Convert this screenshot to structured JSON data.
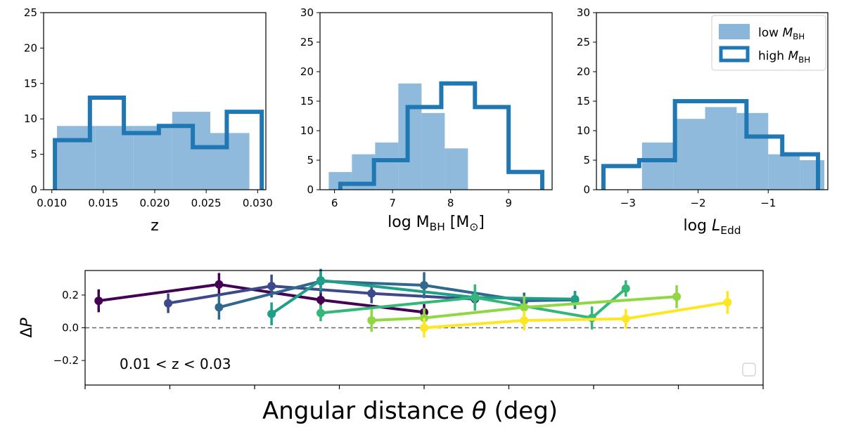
{
  "chart_data": [
    {
      "type": "histogram",
      "xlabel": "z",
      "xlim": [
        0.0092,
        0.0308
      ],
      "ylim": [
        0,
        25
      ],
      "xticks": [
        0.01,
        0.015,
        0.02,
        0.025,
        0.03
      ],
      "xtick_labels": [
        "0.010",
        "0.015",
        "0.020",
        "0.025",
        "0.030"
      ],
      "yticks": [
        0,
        5,
        10,
        15,
        20,
        25
      ],
      "ytick_labels": [
        "0",
        "5",
        "10",
        "15",
        "20",
        "25"
      ],
      "low": {
        "name": "low M_BH",
        "color": "#89b6d9",
        "edges": [
          0.0105,
          0.0142,
          0.0179,
          0.0217,
          0.0254,
          0.0292
        ],
        "counts": [
          9,
          9,
          9,
          11,
          8
        ]
      },
      "high": {
        "name": "high M_BH",
        "color": "#1f77b4",
        "edges": [
          0.0103,
          0.0137,
          0.017,
          0.0204,
          0.0237,
          0.027,
          0.0304
        ],
        "counts": [
          7,
          13,
          8,
          9,
          6,
          11
        ]
      }
    },
    {
      "type": "histogram",
      "xlabel": "log M_BH [M_sun]",
      "xlim": [
        5.75,
        9.75
      ],
      "ylim": [
        0,
        30
      ],
      "xticks": [
        6,
        7,
        8,
        9
      ],
      "xtick_labels": [
        "6",
        "7",
        "8",
        "9"
      ],
      "yticks": [
        0,
        5,
        10,
        15,
        20,
        25,
        30
      ],
      "ytick_labels": [
        "0",
        "5",
        "10",
        "15",
        "20",
        "25",
        "30"
      ],
      "low": {
        "name": "low M_BH",
        "color": "#89b6d9",
        "edges": [
          5.9,
          6.3,
          6.7,
          7.1,
          7.5,
          7.9,
          8.3
        ],
        "counts": [
          3,
          6,
          8,
          18,
          13,
          7
        ]
      },
      "high": {
        "name": "high M_BH",
        "color": "#1f77b4",
        "edges": [
          6.1,
          6.68,
          7.26,
          7.84,
          8.42,
          9.0,
          9.58
        ],
        "counts": [
          1,
          5,
          14,
          18,
          14,
          3
        ]
      }
    },
    {
      "type": "histogram",
      "xlabel": "log L_Edd",
      "xlim": [
        -3.45,
        -0.15
      ],
      "ylim": [
        0,
        30
      ],
      "xticks": [
        -3,
        -2,
        -1
      ],
      "xtick_labels": [
        "−3",
        "−2",
        "−1"
      ],
      "yticks": [
        0,
        5,
        10,
        15,
        20,
        25,
        30
      ],
      "ytick_labels": [
        "0",
        "5",
        "10",
        "15",
        "20",
        "25",
        "30"
      ],
      "low": {
        "name": "low M_BH",
        "color": "#89b6d9",
        "edges": [
          -2.8,
          -2.35,
          -1.9,
          -1.45,
          -1.0,
          -0.55,
          -0.2
        ],
        "counts": [
          8,
          12,
          14,
          13,
          6,
          5
        ]
      },
      "high": {
        "name": "high M_BH",
        "color": "#1f77b4",
        "edges": [
          -3.35,
          -2.84,
          -2.33,
          -1.82,
          -1.31,
          -0.8,
          -0.29
        ],
        "counts": [
          4,
          5,
          15,
          15,
          9,
          6
        ]
      }
    },
    {
      "type": "line",
      "ylabel": "ΔP",
      "xlabel": "Angular distance θ (deg)",
      "annotation": "0.01 < z < 0.03",
      "xlim": [
        0.0,
        4.0
      ],
      "ylim": [
        -0.35,
        0.35
      ],
      "xticks": [
        0.0,
        0.5,
        1.0,
        1.5,
        2.0,
        2.5,
        3.0,
        3.5,
        4.0
      ],
      "yticks": [
        -0.2,
        0.0,
        0.2
      ],
      "ytick_labels": [
        "−0.2",
        "0.0",
        "0.2"
      ],
      "zero_line": true,
      "series": [
        {
          "name": "s1",
          "color": "#440154",
          "x": [
            0.08,
            0.79,
            1.39,
            2.0
          ],
          "y": [
            0.165,
            0.265,
            0.17,
            0.095
          ],
          "err": [
            0.07,
            0.07,
            0.07,
            0.05
          ]
        },
        {
          "name": "s2",
          "color": "#3e4989",
          "x": [
            0.49,
            1.1,
            1.69,
            2.3
          ],
          "y": [
            0.15,
            0.255,
            0.21,
            0.175
          ],
          "err": [
            0.06,
            0.07,
            0.06,
            0.05
          ]
        },
        {
          "name": "s3",
          "color": "#31688e",
          "x": [
            0.79,
            1.39,
            2.0,
            2.59,
            2.89
          ],
          "y": [
            0.125,
            0.285,
            0.26,
            0.165,
            0.17
          ],
          "err": [
            0.075,
            0.075,
            0.08,
            0.05,
            0.055
          ]
        },
        {
          "name": "s4",
          "color": "#1f9e89",
          "x": [
            1.1,
            1.39,
            2.3,
            2.89
          ],
          "y": [
            0.085,
            0.29,
            0.185,
            0.175
          ],
          "err": [
            0.07,
            0.06,
            0.06,
            0.05
          ]
        },
        {
          "name": "s5",
          "color": "#35b779",
          "x": [
            1.39,
            2.3,
            2.99,
            3.19
          ],
          "y": [
            0.09,
            0.185,
            0.06,
            0.24
          ],
          "err": [
            0.05,
            0.08,
            0.07,
            0.05
          ]
        },
        {
          "name": "s6",
          "color": "#90d743",
          "x": [
            1.69,
            2.0,
            2.59,
            3.49
          ],
          "y": [
            0.045,
            0.06,
            0.125,
            0.19
          ],
          "err": [
            0.07,
            0.06,
            0.07,
            0.07
          ]
        },
        {
          "name": "s7",
          "color": "#fde725",
          "x": [
            2.0,
            2.59,
            3.19,
            3.79
          ],
          "y": [
            0.0,
            0.045,
            0.055,
            0.155
          ],
          "err": [
            0.06,
            0.06,
            0.06,
            0.07
          ]
        }
      ]
    }
  ],
  "legend": {
    "items": [
      {
        "label": "low",
        "sub": "BH",
        "style": "filled"
      },
      {
        "label": "high",
        "sub": "BH",
        "style": "step"
      }
    ]
  }
}
